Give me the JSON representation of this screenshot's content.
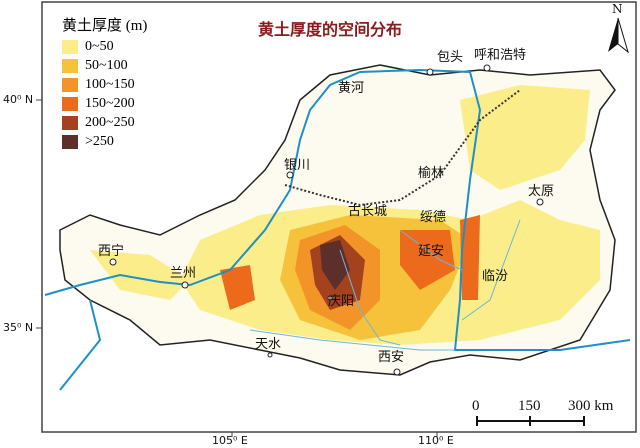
{
  "title": "黄土厚度的空间分布",
  "legend": {
    "title": "黄土厚度 (m)",
    "items": [
      {
        "label": "0~50",
        "color": "#fbed8a"
      },
      {
        "label": "50~100",
        "color": "#f6c23c"
      },
      {
        "label": "100~150",
        "color": "#f29427"
      },
      {
        "label": "150~200",
        "color": "#ec6a1c"
      },
      {
        "label": "200~250",
        "color": "#a4421e"
      },
      {
        "label": ">250",
        "color": "#5c2f2a"
      }
    ]
  },
  "cities": [
    "包头",
    "呼和浩特",
    "黄河",
    "银川",
    "榆林",
    "太原",
    "古长城",
    "绥德",
    "西宁",
    "兰州",
    "延安",
    "临汾",
    "庆阳",
    "天水",
    "西安"
  ],
  "axes": {
    "lat": [
      "40⁰ N",
      "35⁰ N"
    ],
    "lon": [
      "105⁰ E",
      "110⁰ E"
    ]
  },
  "scale": {
    "ticks": [
      "0",
      "150",
      "300 km"
    ]
  },
  "north": "N",
  "colors": {
    "river": "#1e8fc8",
    "border": "#222222"
  }
}
